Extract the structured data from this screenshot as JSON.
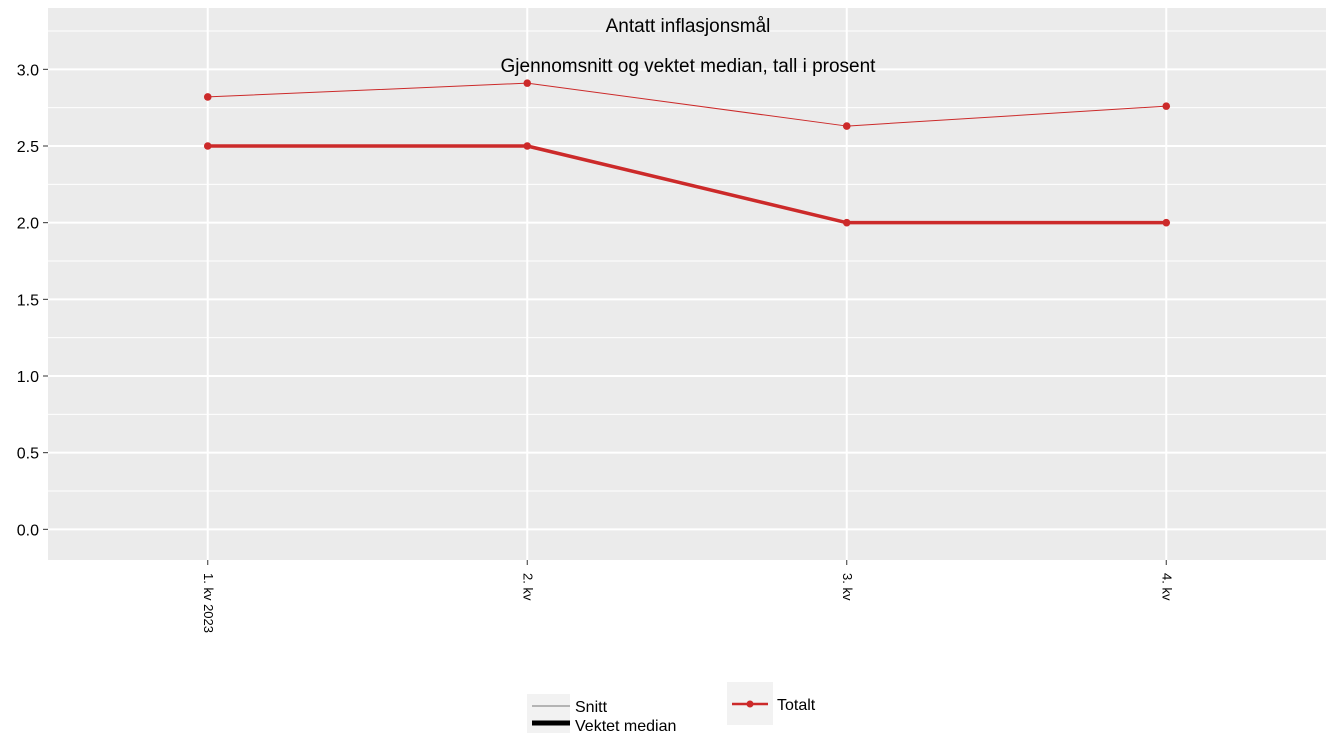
{
  "chart_data": {
    "type": "line",
    "title": "Antatt inflasjonsmål",
    "subtitle": "Gjennomsnitt og vektet median, tall i prosent",
    "xlabel": "",
    "ylabel": "",
    "categories": [
      "1. kv 2023",
      "2. kv",
      "3. kv",
      "4. kv"
    ],
    "ylim": [
      -0.2,
      3.4
    ],
    "yticks": [
      "0.0",
      "0.5",
      "1.0",
      "1.5",
      "2.0",
      "2.5",
      "3.0"
    ],
    "grid": true,
    "series": [
      {
        "name": "Snitt",
        "group": "Totalt",
        "values": [
          2.82,
          2.91,
          2.63,
          2.76
        ]
      },
      {
        "name": "Vektet median",
        "group": "Totalt",
        "values": [
          2.5,
          2.5,
          2.0,
          2.0
        ]
      }
    ],
    "legend": {
      "placement": "bottom",
      "linetype_items": [
        "Snitt",
        "Vektet median"
      ],
      "color_items": [
        "Totalt"
      ]
    },
    "colors": {
      "series_line": "#cc2a2a",
      "panel_background": "#ebebeb",
      "gridline": "#ffffff",
      "legend_snitt": "#a0a0a0",
      "legend_median": "#000000"
    }
  }
}
